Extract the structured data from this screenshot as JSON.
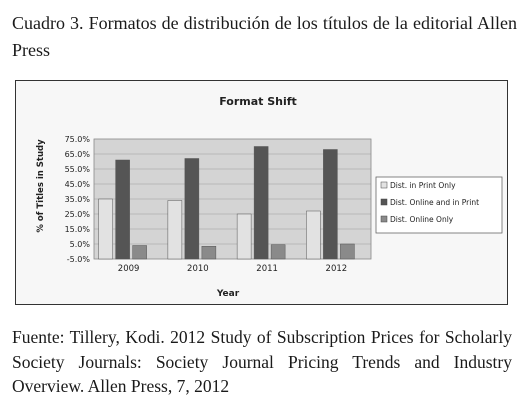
{
  "caption": "Cuadro 3. Formatos de distribución de los títulos de la editorial Allen Press",
  "source": "Fuente: Tillery, Kodi. 2012 Study of Subscription Prices for Scholarly Society Journals: Society Journal Pricing Trends and Industry Overview. Allen Press, 7, 2012",
  "chart_data": {
    "type": "bar",
    "title": "Format Shift",
    "xlabel": "Year",
    "ylabel": "% of Titles in Study",
    "categories": [
      "2009",
      "2010",
      "2011",
      "2012"
    ],
    "ylim": [
      -5,
      75
    ],
    "yticks": [
      "75.0%",
      "65.0%",
      "55.0%",
      "45.0%",
      "35.0%",
      "25.0%",
      "15.0%",
      "5.0%",
      "-5.0%"
    ],
    "grid": true,
    "legend_position": "right",
    "series": [
      {
        "name": "Dist. in Print Only",
        "values": [
          35.0,
          34.0,
          25.0,
          27.0
        ],
        "color": "#e2e2e2"
      },
      {
        "name": "Dist. Online and in Print",
        "values": [
          61.0,
          62.0,
          70.0,
          68.0
        ],
        "color": "#555555"
      },
      {
        "name": "Dist. Online Only",
        "values": [
          4.0,
          3.5,
          4.5,
          5.0
        ],
        "color": "#8a8a8a"
      }
    ]
  }
}
